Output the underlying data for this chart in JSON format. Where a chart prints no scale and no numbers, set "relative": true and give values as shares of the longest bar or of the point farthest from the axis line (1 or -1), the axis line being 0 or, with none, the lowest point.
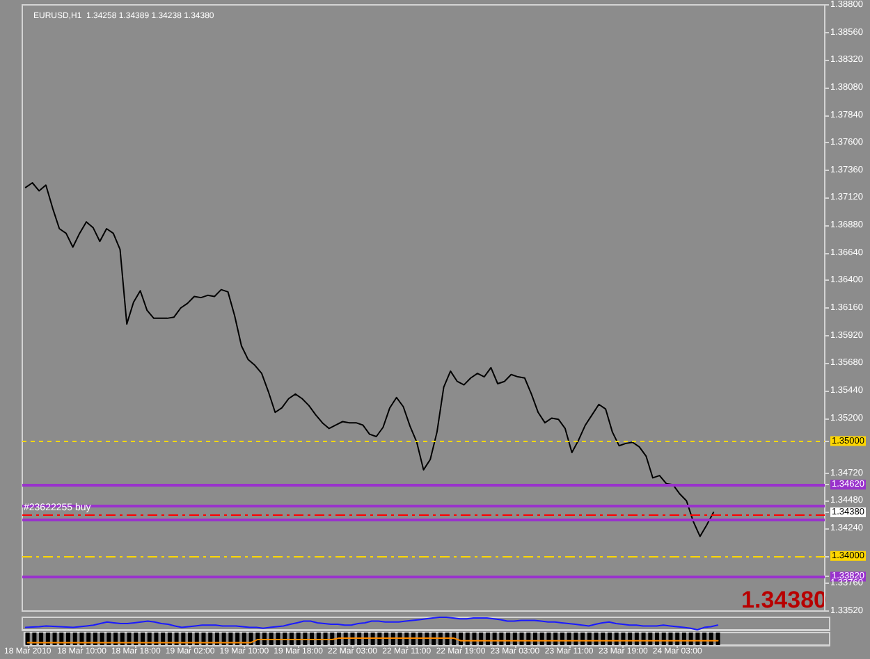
{
  "chart_data": [
    {
      "type": "line",
      "title": "EURUSD,H1  1.34258 1.34389 1.34238 1.34380",
      "categories": [
        null,
        null,
        null,
        null,
        null,
        null,
        null,
        null,
        null,
        null,
        null,
        null,
        null,
        null,
        null,
        null,
        null,
        null,
        null,
        null,
        null,
        null,
        null,
        null,
        null,
        null,
        null,
        null,
        null,
        null,
        null,
        null,
        null,
        null,
        null,
        null,
        null,
        null,
        null,
        null,
        null,
        null,
        null,
        null,
        null,
        null,
        null,
        null,
        null,
        null,
        null,
        null,
        null,
        null,
        null,
        null,
        null,
        null,
        null,
        null,
        null,
        null,
        null,
        null,
        null,
        null,
        null,
        null,
        null,
        null,
        null,
        null,
        null,
        null,
        null,
        null,
        null,
        null,
        null,
        null,
        null,
        null,
        null,
        null,
        null,
        null,
        null,
        null,
        null,
        null,
        null,
        null,
        null,
        null,
        null,
        null,
        null,
        null,
        null,
        null,
        null,
        null,
        null,
        null,
        null,
        null,
        null,
        null,
        null,
        null,
        null,
        null,
        null,
        null,
        null,
        null,
        null,
        null,
        null
      ],
      "series": [
        {
          "color": "#000000",
          "values": [
            1.3721,
            1.3725,
            1.3718,
            1.3723,
            1.3703,
            1.3685,
            1.3681,
            1.3669,
            1.3681,
            1.3691,
            1.3686,
            1.3674,
            1.3685,
            1.3681,
            1.3667,
            1.3602,
            1.3621,
            1.3631,
            1.3614,
            1.3607,
            1.3607,
            1.3607,
            1.3608,
            1.3616,
            1.362,
            1.3626,
            1.3625,
            1.3627,
            1.3626,
            1.3632,
            1.363,
            1.3609,
            1.3583,
            1.3571,
            1.3566,
            1.3559,
            1.3543,
            1.3525,
            1.3529,
            1.3537,
            1.3541,
            1.3537,
            1.3531,
            1.3523,
            1.3516,
            1.3511,
            1.3514,
            1.3517,
            1.3516,
            1.3516,
            1.3514,
            1.3506,
            1.3504,
            1.3512,
            1.3529,
            1.3538,
            1.353,
            1.3513,
            1.3499,
            1.3475,
            1.3484,
            1.3508,
            1.3547,
            1.3561,
            1.3552,
            1.3549,
            1.3555,
            1.3559,
            1.3556,
            1.3564,
            1.355,
            1.3552,
            1.3558,
            1.3556,
            1.3555,
            1.3541,
            1.3525,
            1.3516,
            1.352,
            1.3519,
            1.3511,
            1.349,
            1.3501,
            1.3514,
            1.3523,
            1.3532,
            1.3528,
            1.3508,
            1.3496,
            1.3498,
            1.3499,
            1.3495,
            1.3487,
            1.3468,
            1.347,
            1.3463,
            1.3462,
            1.3454,
            1.3448,
            1.343,
            1.3417,
            1.3427,
            1.3438,
            null,
            null,
            null,
            null,
            null,
            null,
            null,
            null,
            null,
            null,
            null,
            null,
            null,
            null,
            null,
            null
          ]
        }
      ],
      "ylim": [
        1.3352,
        1.388
      ],
      "yticks": [
        {
          "value": 1.3352,
          "label": "1.33520"
        },
        {
          "value": 1.3376,
          "label": "1.33760"
        },
        {
          "value": 1.34,
          "label": "1.34000"
        },
        {
          "value": 1.3424,
          "label": "1.34240"
        },
        {
          "value": 1.3448,
          "label": "1.34480"
        },
        {
          "value": 1.3472,
          "label": "1.34720"
        },
        {
          "value": 1.352,
          "label": "1.35200"
        },
        {
          "value": 1.3544,
          "label": "1.35440"
        },
        {
          "value": 1.3568,
          "label": "1.35680"
        },
        {
          "value": 1.3592,
          "label": "1.35920"
        },
        {
          "value": 1.3616,
          "label": "1.36160"
        },
        {
          "value": 1.364,
          "label": "1.36400"
        },
        {
          "value": 1.3664,
          "label": "1.36640"
        },
        {
          "value": 1.3688,
          "label": "1.36880"
        },
        {
          "value": 1.3712,
          "label": "1.37120"
        },
        {
          "value": 1.3736,
          "label": "1.37360"
        },
        {
          "value": 1.376,
          "label": "1.37600"
        },
        {
          "value": 1.3784,
          "label": "1.37840"
        },
        {
          "value": 1.3808,
          "label": "1.38080"
        },
        {
          "value": 1.3832,
          "label": "1.38320"
        },
        {
          "value": 1.3856,
          "label": "1.38560"
        },
        {
          "value": 1.388,
          "label": "1.38800"
        },
        {
          "value": 1.35,
          "label": "1.35000"
        },
        {
          "value": 1.3462,
          "label": "1.34620"
        },
        {
          "value": 1.3382,
          "label": "1.33820"
        },
        {
          "value": 1.3438,
          "label": "1.34380"
        }
      ],
      "ref_lines": [
        {
          "axis": "y",
          "value": 1.35,
          "color": "#ffd700",
          "line_style": "dashed"
        },
        {
          "axis": "y",
          "value": 1.3462,
          "color": "#9932cc",
          "line_style": "solid"
        },
        {
          "axis": "y",
          "value": 1.3444,
          "color": "#9932cc",
          "line_style": "solid"
        },
        {
          "axis": "y",
          "value": 1.3436,
          "label": "#23622255 buy",
          "color": "#ff0000",
          "line_style": "dashdot"
        },
        {
          "axis": "y",
          "value": 1.3432,
          "color": "#9932cc",
          "line_style": "solid"
        },
        {
          "axis": "y",
          "value": 1.34,
          "color": "#ffd700",
          "line_style": "dashdot"
        },
        {
          "axis": "y",
          "value": 1.3382,
          "color": "#9932cc",
          "line_style": "solid"
        }
      ],
      "annotations": [
        "1.34380"
      ]
    },
    {
      "type": "line",
      "relative": true,
      "categories": [
        null,
        null,
        null,
        null,
        null,
        null,
        null,
        null,
        null,
        null,
        null,
        null,
        null,
        null,
        null,
        null,
        null,
        null,
        null,
        null,
        null,
        null,
        null,
        null,
        null,
        null,
        null,
        null,
        null,
        null,
        null,
        null,
        null,
        null,
        null,
        null,
        null,
        null,
        null,
        null,
        null,
        null,
        null,
        null,
        null,
        null,
        null,
        null,
        null,
        null,
        null,
        null,
        null,
        null,
        null,
        null,
        null,
        null,
        null,
        null,
        null,
        null,
        null,
        null,
        null,
        null,
        null,
        null,
        null,
        null,
        null,
        null,
        null,
        null,
        null,
        null,
        null,
        null,
        null,
        null,
        null,
        null,
        null,
        null,
        null,
        null,
        null,
        null,
        null,
        null,
        null,
        null,
        null,
        null,
        null,
        null,
        null,
        null,
        null,
        null,
        null,
        null,
        null,
        null,
        null,
        null,
        null,
        null,
        null,
        null,
        null,
        null,
        null,
        null,
        null,
        null,
        null,
        null,
        null
      ],
      "series": [
        {
          "color": "#1a1aff",
          "values": [
            0.19,
            0.22,
            0.25,
            0.31,
            0.28,
            0.25,
            0.22,
            0.19,
            0.25,
            0.31,
            0.38,
            0.5,
            0.63,
            0.56,
            0.5,
            0.5,
            0.56,
            0.63,
            0.69,
            0.63,
            0.5,
            0.44,
            0.31,
            0.19,
            0.25,
            0.31,
            0.38,
            0.38,
            0.38,
            0.31,
            0.31,
            0.31,
            0.25,
            0.19,
            0.19,
            0.13,
            0.19,
            0.25,
            0.31,
            0.44,
            0.56,
            0.69,
            0.69,
            0.56,
            0.5,
            0.44,
            0.44,
            0.38,
            0.38,
            0.5,
            0.56,
            0.69,
            0.69,
            0.63,
            0.63,
            0.63,
            0.69,
            0.75,
            0.81,
            0.88,
            0.94,
            1,
            1,
            0.94,
            0.88,
            0.88,
            0.94,
            0.94,
            0.94,
            0.88,
            0.81,
            0.69,
            0.69,
            0.75,
            0.75,
            0.75,
            0.69,
            0.63,
            0.63,
            0.56,
            0.5,
            0.44,
            0.38,
            0.31,
            0.44,
            0.56,
            0.63,
            0.5,
            0.44,
            0.38,
            0.38,
            0.31,
            0.31,
            0.31,
            0.38,
            0.31,
            0.25,
            0.19,
            0.13,
            0,
            0.19,
            0.25,
            0.38,
            null,
            null,
            null,
            null,
            null,
            null,
            null,
            null,
            null,
            null,
            null,
            null,
            null,
            null,
            null,
            null
          ]
        }
      ]
    },
    {
      "type": "bar",
      "relative": true,
      "categories": [
        "18 Mar 2010",
        null,
        null,
        null,
        null,
        null,
        null,
        null,
        "18 Mar 10:00",
        null,
        null,
        null,
        null,
        null,
        null,
        null,
        "18 Mar 18:00",
        null,
        null,
        null,
        null,
        null,
        null,
        null,
        "19 Mar 02:00",
        null,
        null,
        null,
        null,
        null,
        null,
        null,
        "19 Mar 10:00",
        null,
        null,
        null,
        null,
        null,
        null,
        null,
        "19 Mar 18:00",
        null,
        null,
        null,
        null,
        null,
        null,
        null,
        "22 Mar 03:00",
        null,
        null,
        null,
        null,
        null,
        null,
        null,
        "22 Mar 11:00",
        null,
        null,
        null,
        null,
        null,
        null,
        null,
        "22 Mar 19:00",
        null,
        null,
        null,
        null,
        null,
        null,
        null,
        "23 Mar 03:00",
        null,
        null,
        null,
        null,
        null,
        null,
        null,
        "23 Mar 11:00",
        null,
        null,
        null,
        null,
        null,
        null,
        null,
        "23 Mar 19:00",
        null,
        null,
        null,
        null,
        null,
        null,
        null,
        "24 Mar 03:00",
        null,
        null,
        null,
        null,
        null,
        null,
        null,
        null,
        null,
        null,
        null,
        null,
        null,
        null,
        null,
        null,
        null,
        null,
        null,
        null,
        null,
        null
      ],
      "series": [
        {
          "color": "#000000",
          "values": [
            1,
            1,
            1,
            1,
            1,
            1,
            1,
            1,
            1,
            1,
            1,
            1,
            1,
            1,
            1,
            1,
            1,
            1,
            1,
            1,
            1,
            1,
            1,
            1,
            1,
            1,
            1,
            1,
            1,
            1,
            1,
            1,
            1,
            1,
            1,
            1,
            1,
            1,
            1,
            1,
            1,
            1,
            1,
            1,
            1,
            1,
            1,
            1,
            1,
            1,
            1,
            1,
            1,
            1,
            1,
            1,
            1,
            1,
            1,
            1,
            1,
            1,
            1,
            1,
            1,
            1,
            1,
            1,
            1,
            1,
            1,
            1,
            1,
            1,
            1,
            1,
            1,
            1,
            1,
            1,
            1,
            1,
            1,
            1,
            1,
            1,
            1,
            1,
            1,
            1,
            1,
            1,
            1,
            1,
            1,
            1,
            1,
            1,
            1,
            1,
            1,
            1,
            1,
            null,
            null,
            null,
            null,
            null,
            null,
            null,
            null,
            null,
            null,
            null,
            null,
            null,
            null,
            null,
            null
          ]
        },
        {
          "type": "line",
          "color": "#ff8c00",
          "values": [
            0.2,
            0.2,
            0.2,
            0.2,
            0.2,
            0.2,
            0.2,
            0.2,
            0.2,
            0.2,
            0.2,
            0.2,
            0.2,
            0.2,
            0.2,
            0.2,
            0.2,
            0.2,
            0.2,
            0.2,
            0.2,
            0.2,
            0.2,
            0.2,
            0.2,
            0.2,
            0.2,
            0.2,
            0.2,
            0.2,
            0.2,
            0.2,
            0.2,
            0.2,
            0.45,
            0.45,
            0.45,
            0.45,
            0.45,
            0.45,
            0.45,
            0.45,
            0.45,
            0.45,
            0.45,
            0.45,
            0.55,
            0.55,
            0.55,
            0.55,
            0.55,
            0.55,
            0.55,
            0.55,
            0.55,
            0.55,
            0.55,
            0.55,
            0.55,
            0.55,
            0.55,
            0.55,
            0.55,
            0.55,
            0.35,
            0.35,
            0.35,
            0.35,
            0.35,
            0.35,
            0.35,
            0.35,
            0.35,
            0.35,
            0.35,
            0.35,
            0.35,
            0.35,
            0.35,
            0.35,
            0.35,
            0.35,
            0.35,
            0.35,
            0.35,
            0.35,
            0.35,
            0.35,
            0.35,
            0.35,
            0.35,
            0.35,
            0.35,
            0.35,
            0.35,
            0.35,
            0.35,
            0.35,
            0.35,
            0.35,
            0.35,
            0.35,
            0.35,
            null,
            null,
            null,
            null,
            null,
            null,
            null,
            null,
            null,
            null,
            null,
            null,
            null,
            null,
            null,
            null
          ]
        }
      ]
    }
  ]
}
